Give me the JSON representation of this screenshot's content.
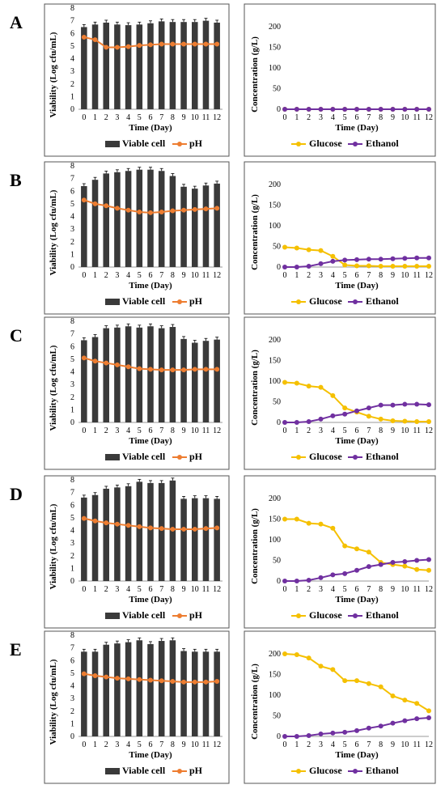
{
  "panels": [
    {
      "label": "A"
    },
    {
      "label": "B"
    },
    {
      "label": "C"
    },
    {
      "label": "D"
    },
    {
      "label": "E"
    }
  ],
  "colors": {
    "bar": "#3a3a3a",
    "ph": "#ed7d31",
    "glucose": "#f5c000",
    "ethanol": "#7030a0",
    "frame": "#555555"
  },
  "chart_data": [
    {
      "panel": "A",
      "type": "bar",
      "xlabel": "Time (Day)",
      "ylabel": "Viability (Log cfu/mL)",
      "ylim": [
        0,
        8
      ],
      "x": [
        0,
        1,
        2,
        3,
        4,
        5,
        6,
        7,
        8,
        9,
        10,
        11,
        12
      ],
      "series": [
        {
          "name": "Viable cell",
          "type": "bar",
          "values": [
            6.5,
            6.7,
            6.85,
            6.7,
            6.65,
            6.7,
            6.8,
            6.95,
            6.9,
            6.9,
            6.9,
            7.0,
            6.85
          ]
        },
        {
          "name": "pH",
          "type": "line",
          "values": [
            5.7,
            5.5,
            4.9,
            4.9,
            4.95,
            5.05,
            5.1,
            5.15,
            5.15,
            5.15,
            5.15,
            5.15,
            5.15
          ]
        }
      ]
    },
    {
      "panel": "A",
      "type": "line",
      "xlabel": "Time (Day)",
      "ylabel": "Concentration (g/L)",
      "ylim": [
        0,
        200
      ],
      "x": [
        0,
        1,
        2,
        3,
        4,
        5,
        6,
        7,
        8,
        9,
        10,
        11,
        12
      ],
      "series": [
        {
          "name": "Glucose",
          "values": [
            0,
            0,
            0,
            0,
            0,
            0,
            0,
            0,
            0,
            0,
            0,
            0,
            0
          ]
        },
        {
          "name": "Ethanol",
          "values": [
            0,
            0,
            0,
            0,
            0,
            0,
            0,
            0,
            0,
            0,
            0,
            0,
            0
          ]
        }
      ]
    },
    {
      "panel": "B",
      "type": "bar",
      "xlabel": "Time (Day)",
      "ylabel": "Viability (Log cfu/mL)",
      "ylim": [
        0,
        8
      ],
      "x": [
        0,
        1,
        2,
        3,
        4,
        5,
        6,
        7,
        8,
        9,
        10,
        11,
        12
      ],
      "series": [
        {
          "name": "Viable cell",
          "type": "bar",
          "values": [
            6.4,
            6.9,
            7.4,
            7.5,
            7.6,
            7.7,
            7.7,
            7.6,
            7.2,
            6.35,
            6.2,
            6.45,
            6.6
          ]
        },
        {
          "name": "pH",
          "type": "line",
          "values": [
            5.3,
            5.0,
            4.85,
            4.65,
            4.5,
            4.35,
            4.3,
            4.35,
            4.45,
            4.5,
            4.55,
            4.6,
            4.65
          ]
        }
      ]
    },
    {
      "panel": "B",
      "type": "line",
      "xlabel": "Time (Day)",
      "ylabel": "Concentration (g/L)",
      "ylim": [
        0,
        200
      ],
      "x": [
        0,
        1,
        2,
        3,
        4,
        5,
        6,
        7,
        8,
        9,
        10,
        11,
        12
      ],
      "series": [
        {
          "name": "Glucose",
          "values": [
            48,
            46,
            42,
            40,
            26,
            5,
            3,
            3,
            2,
            2,
            2,
            2,
            2
          ]
        },
        {
          "name": "Ethanol",
          "values": [
            0,
            0,
            2,
            8,
            14,
            17,
            18,
            19,
            19,
            20,
            21,
            22,
            22
          ]
        }
      ]
    },
    {
      "panel": "C",
      "type": "bar",
      "xlabel": "Time (Day)",
      "ylabel": "Viability (Log cfu/mL)",
      "ylim": [
        0,
        8
      ],
      "x": [
        0,
        1,
        2,
        3,
        4,
        5,
        6,
        7,
        8,
        9,
        10,
        11,
        12
      ],
      "series": [
        {
          "name": "Viable cell",
          "type": "bar",
          "values": [
            6.5,
            6.75,
            7.45,
            7.5,
            7.6,
            7.5,
            7.6,
            7.45,
            7.55,
            6.6,
            6.3,
            6.45,
            6.55
          ]
        },
        {
          "name": "pH",
          "type": "line",
          "values": [
            5.1,
            4.85,
            4.7,
            4.55,
            4.4,
            4.25,
            4.2,
            4.15,
            4.15,
            4.15,
            4.2,
            4.2,
            4.2
          ]
        }
      ]
    },
    {
      "panel": "C",
      "type": "line",
      "xlabel": "Time (Day)",
      "ylabel": "Concentration (g/L)",
      "ylim": [
        0,
        200
      ],
      "x": [
        0,
        1,
        2,
        3,
        4,
        5,
        6,
        7,
        8,
        9,
        10,
        11,
        12
      ],
      "series": [
        {
          "name": "Glucose",
          "values": [
            97,
            95,
            88,
            85,
            65,
            35,
            25,
            15,
            8,
            4,
            3,
            2,
            2
          ]
        },
        {
          "name": "Ethanol",
          "values": [
            0,
            0,
            2,
            8,
            16,
            20,
            28,
            35,
            42,
            42,
            44,
            44,
            43
          ]
        }
      ]
    },
    {
      "panel": "D",
      "type": "bar",
      "xlabel": "Time (Day)",
      "ylabel": "Viability (Log cfu/mL)",
      "ylim": [
        0,
        8
      ],
      "x": [
        0,
        1,
        2,
        3,
        4,
        5,
        6,
        7,
        8,
        9,
        10,
        11,
        12
      ],
      "series": [
        {
          "name": "Viable cell",
          "type": "bar",
          "values": [
            6.6,
            6.8,
            7.3,
            7.4,
            7.5,
            7.85,
            7.75,
            7.75,
            7.95,
            6.5,
            6.55,
            6.55,
            6.5
          ]
        },
        {
          "name": "pH",
          "type": "line",
          "values": [
            4.95,
            4.75,
            4.6,
            4.5,
            4.4,
            4.3,
            4.2,
            4.15,
            4.1,
            4.1,
            4.1,
            4.15,
            4.2
          ]
        }
      ]
    },
    {
      "panel": "D",
      "type": "line",
      "xlabel": "Time (Day)",
      "ylabel": "Concentration (g/L)",
      "ylim": [
        0,
        200
      ],
      "x": [
        0,
        1,
        2,
        3,
        4,
        5,
        6,
        7,
        8,
        9,
        10,
        11,
        12
      ],
      "series": [
        {
          "name": "Glucose",
          "values": [
            150,
            150,
            140,
            138,
            128,
            85,
            78,
            70,
            45,
            40,
            36,
            28,
            26
          ]
        },
        {
          "name": "Ethanol",
          "values": [
            0,
            0,
            2,
            8,
            15,
            18,
            26,
            35,
            40,
            45,
            47,
            50,
            52
          ]
        }
      ]
    },
    {
      "panel": "E",
      "type": "bar",
      "xlabel": "Time (Day)",
      "ylabel": "Viability (Log cfu/mL)",
      "ylim": [
        0,
        8
      ],
      "x": [
        0,
        1,
        2,
        3,
        4,
        5,
        6,
        7,
        8,
        9,
        10,
        11,
        12
      ],
      "series": [
        {
          "name": "Viable cell",
          "type": "bar",
          "values": [
            6.7,
            6.7,
            7.25,
            7.35,
            7.45,
            7.6,
            7.3,
            7.55,
            7.6,
            6.75,
            6.7,
            6.7,
            6.7
          ]
        },
        {
          "name": "pH",
          "type": "line",
          "values": [
            4.95,
            4.8,
            4.7,
            4.6,
            4.55,
            4.5,
            4.45,
            4.4,
            4.35,
            4.3,
            4.3,
            4.3,
            4.35
          ]
        }
      ]
    },
    {
      "panel": "E",
      "type": "line",
      "xlabel": "Time (Day)",
      "ylabel": "Concentration (g/L)",
      "ylim": [
        0,
        200
      ],
      "x": [
        0,
        1,
        2,
        3,
        4,
        5,
        6,
        7,
        8,
        9,
        10,
        11,
        12
      ],
      "series": [
        {
          "name": "Glucose",
          "values": [
            200,
            198,
            190,
            170,
            162,
            135,
            135,
            128,
            120,
            98,
            88,
            80,
            62
          ]
        },
        {
          "name": "Ethanol",
          "values": [
            0,
            0,
            2,
            6,
            8,
            10,
            14,
            20,
            25,
            32,
            38,
            43,
            45
          ]
        }
      ]
    }
  ]
}
